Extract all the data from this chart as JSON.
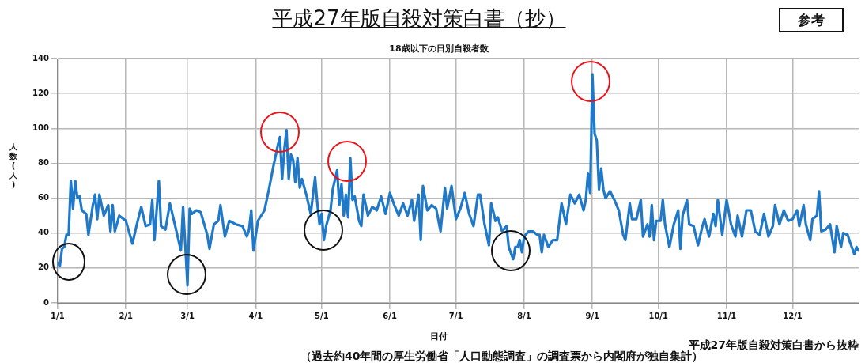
{
  "chart_data": {
    "type": "line",
    "title": "平成27年版自殺対策白書（抄）",
    "subtitle": "18歳以下の日別自殺者数",
    "xlabel": "日付",
    "ylabel": "人数(人)",
    "annotations": [
      "参考",
      "平成27年版自殺対策白書から抜粋",
      "（過去約40年間の厚生労働省「人口動態調査」の調査票から内閣府が独自集計）"
    ],
    "xlim": [
      "--01-01",
      "--12-31"
    ],
    "xticks": [
      {
        "value": "--01-01",
        "label": "1/1"
      },
      {
        "value": "--02-01",
        "label": "2/1"
      },
      {
        "value": "--03-01",
        "label": "3/1"
      },
      {
        "value": "--04-01",
        "label": "4/1"
      },
      {
        "value": "--05-01",
        "label": "5/1"
      },
      {
        "value": "--06-01",
        "label": "6/1"
      },
      {
        "value": "--07-01",
        "label": "7/1"
      },
      {
        "value": "--08-01",
        "label": "8/1"
      },
      {
        "value": "--09-01",
        "label": "9/1"
      },
      {
        "value": "--10-01",
        "label": "10/1"
      },
      {
        "value": "--11-01",
        "label": "11/1"
      },
      {
        "value": "--12-01",
        "label": "12/1"
      }
    ],
    "ylim": [
      0,
      140
    ],
    "yticks": [
      0,
      20,
      40,
      60,
      80,
      100,
      120,
      140
    ],
    "grid": true,
    "legend": false,
    "marker": "none",
    "line_style": "solid",
    "series": [
      {
        "color": "#1f78c8",
        "x": [
          "--01-01",
          "--01-02",
          "--01-03",
          "--01-04",
          "--01-05",
          "--01-06",
          "--01-07",
          "--01-08",
          "--01-09",
          "--01-10",
          "--01-11",
          "--01-12",
          "--01-14",
          "--01-15",
          "--01-17",
          "--01-18",
          "--01-19",
          "--01-20",
          "--01-22",
          "--01-24",
          "--01-25",
          "--01-26",
          "--01-27",
          "--01-29",
          "--01-31",
          "--02-01",
          "--02-04",
          "--02-06",
          "--02-08",
          "--02-10",
          "--02-12",
          "--02-13",
          "--02-14",
          "--02-16",
          "--02-17",
          "--02-19",
          "--02-21",
          "--02-24",
          "--02-26",
          "--02-27",
          "--02-28",
          "--03-01",
          "--03-02",
          "--03-03",
          "--03-05",
          "--03-07",
          "--03-10",
          "--03-11",
          "--03-13",
          "--03-15",
          "--03-16",
          "--03-18",
          "--03-20",
          "--03-23",
          "--03-26",
          "--03-27",
          "--03-28",
          "--03-29",
          "--03-30",
          "--03-31",
          "--04-02",
          "--04-05",
          "--04-07",
          "--04-09",
          "--04-11",
          "--04-12",
          "--04-13",
          "--04-14",
          "--04-15",
          "--04-16",
          "--04-17",
          "--04-18",
          "--04-19",
          "--04-20",
          "--04-21",
          "--04-22",
          "--04-24",
          "--04-26",
          "--04-28",
          "--04-29",
          "--04-30",
          "--05-01",
          "--05-02",
          "--05-03",
          "--05-05",
          "--05-06",
          "--05-08",
          "--05-09",
          "--05-10",
          "--05-11",
          "--05-12",
          "--05-13",
          "--05-14",
          "--05-15",
          "--05-16",
          "--05-18",
          "--05-19",
          "--05-20",
          "--05-22",
          "--05-24",
          "--05-26",
          "--05-28",
          "--05-30",
          "--06-01",
          "--06-03",
          "--06-05",
          "--06-07",
          "--06-09",
          "--06-11",
          "--06-12",
          "--06-14",
          "--06-15",
          "--06-16",
          "--06-18",
          "--06-20",
          "--06-22",
          "--06-24",
          "--06-26",
          "--06-27",
          "--06-29",
          "--07-01",
          "--07-03",
          "--07-05",
          "--07-07",
          "--07-09",
          "--07-11",
          "--07-12",
          "--07-14",
          "--07-16",
          "--07-17",
          "--07-19",
          "--07-20",
          "--07-22",
          "--07-24",
          "--07-25",
          "--07-27",
          "--07-28",
          "--07-29",
          "--07-30",
          "--07-31",
          "--08-01",
          "--08-03",
          "--08-05",
          "--08-07",
          "--08-08",
          "--08-09",
          "--08-10",
          "--08-12",
          "--08-14",
          "--08-16",
          "--08-18",
          "--08-20",
          "--08-22",
          "--08-24",
          "--08-26",
          "--08-28",
          "--08-29",
          "--08-30",
          "--08-31",
          "--09-01",
          "--09-02",
          "--09-03",
          "--09-04",
          "--09-05",
          "--09-06",
          "--09-07",
          "--09-09",
          "--09-11",
          "--09-13",
          "--09-15",
          "--09-16",
          "--09-18",
          "--09-19",
          "--09-21",
          "--09-23",
          "--09-24",
          "--09-26",
          "--09-27",
          "--09-28",
          "--09-29",
          "--09-30",
          "--10-02",
          "--10-03",
          "--10-04",
          "--10-06",
          "--10-08",
          "--10-10",
          "--10-11",
          "--10-12",
          "--10-14",
          "--10-15",
          "--10-17",
          "--10-19",
          "--10-21",
          "--10-22",
          "--10-24",
          "--10-26",
          "--10-27",
          "--10-28",
          "--10-30",
          "--11-01",
          "--11-03",
          "--11-05",
          "--11-06",
          "--11-08",
          "--11-10",
          "--11-12",
          "--11-14",
          "--11-16",
          "--11-18",
          "--11-20",
          "--11-22",
          "--11-23",
          "--11-25",
          "--11-27",
          "--11-29",
          "--12-01",
          "--12-03",
          "--12-04",
          "--12-06",
          "--12-07",
          "--12-09",
          "--12-10",
          "--12-12",
          "--12-13",
          "--12-14",
          "--12-16",
          "--12-18",
          "--12-20",
          "--12-21",
          "--12-23",
          "--12-24",
          "--12-26",
          "--12-27",
          "--12-29",
          "--12-30",
          "--12-31"
        ],
        "values": [
          23,
          21,
          31,
          32,
          39,
          39,
          70,
          54,
          70,
          60,
          61,
          53,
          51,
          39,
          56,
          62,
          48,
          62,
          50,
          56,
          41,
          56,
          41,
          50,
          48,
          47,
          34,
          45,
          55,
          44,
          45,
          59,
          36,
          70,
          44,
          42,
          57,
          41,
          30,
          55,
          33,
          10,
          54,
          51,
          53,
          52,
          39,
          31,
          45,
          47,
          56,
          38,
          47,
          45,
          44,
          41,
          38,
          42,
          53,
          30,
          47,
          53,
          65,
          78,
          90,
          95,
          71,
          88,
          99,
          71,
          85,
          82,
          69,
          83,
          66,
          71,
          62,
          51,
          72,
          57,
          45,
          51,
          36,
          44,
          53,
          65,
          76,
          56,
          68,
          50,
          62,
          49,
          83,
          59,
          61,
          47,
          44,
          62,
          50,
          55,
          53,
          61,
          51,
          63,
          56,
          50,
          57,
          50,
          59,
          47,
          62,
          36,
          67,
          53,
          56,
          54,
          41,
          66,
          54,
          67,
          48,
          54,
          63,
          51,
          44,
          62,
          62,
          45,
          33,
          57,
          47,
          49,
          41,
          44,
          32,
          25,
          32,
          32,
          36,
          29,
          38,
          41,
          41,
          39,
          39,
          29,
          39,
          32,
          36,
          36,
          57,
          45,
          62,
          57,
          62,
          53,
          59,
          74,
          63,
          131,
          97,
          93,
          65,
          77,
          65,
          60,
          64,
          59,
          53,
          39,
          36,
          57,
          48,
          48,
          59,
          38,
          45,
          38,
          56,
          36,
          47,
          47,
          59,
          45,
          32,
          45,
          53,
          31,
          50,
          59,
          45,
          44,
          33,
          44,
          48,
          38,
          51,
          44,
          59,
          39,
          59,
          45,
          38,
          50,
          38,
          53,
          53,
          41,
          39,
          51,
          38,
          44,
          56,
          45,
          53,
          47,
          48,
          53,
          44,
          56,
          45,
          36,
          48,
          50,
          64,
          41,
          42,
          45,
          29,
          44,
          32,
          40,
          39,
          35,
          28,
          32,
          30
        ]
      }
    ]
  }
}
